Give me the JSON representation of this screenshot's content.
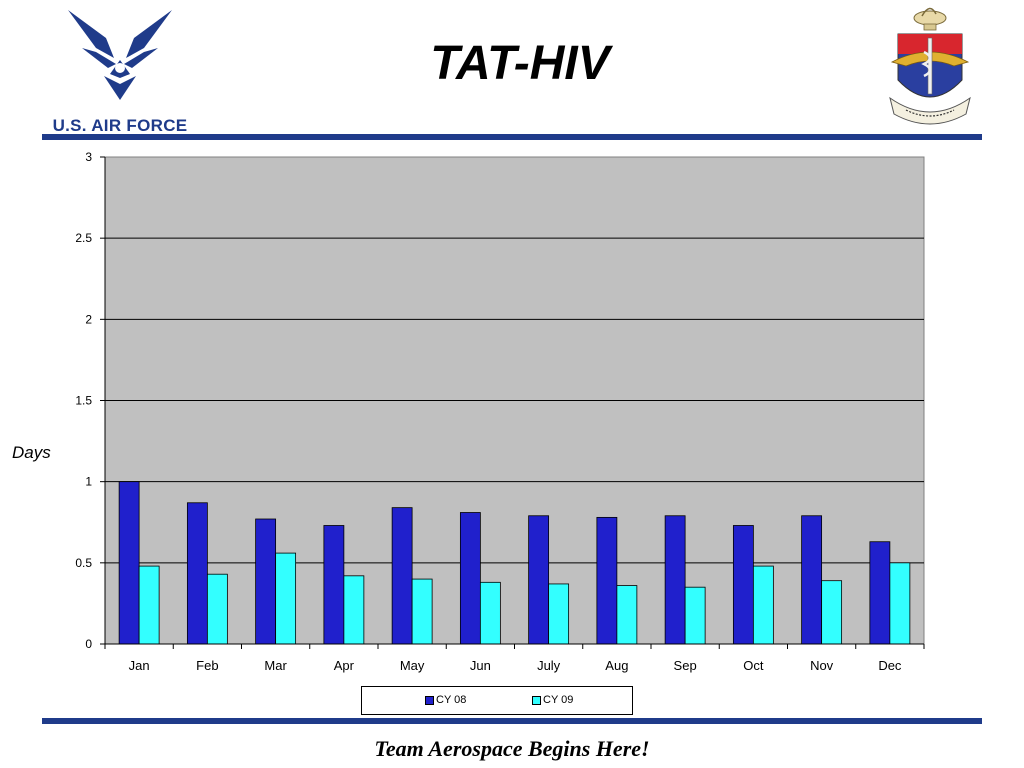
{
  "header": {
    "title": "TAT-HIV",
    "logo_text": "U.S. AIR FORCE"
  },
  "footer": {
    "slogan": "Team Aerospace Begins Here!"
  },
  "colors": {
    "brand_blue": "#1f3b8a",
    "plot_background": "#c0c0c0",
    "cy08": "#2020cc",
    "cy09": "#33ffff"
  },
  "icons": {
    "left_logo": "air-force-wings-icon",
    "right_logo": "medical-crest-icon"
  },
  "chart_data": {
    "type": "bar",
    "title": "",
    "xlabel": "",
    "ylabel": "Days",
    "ylim": [
      0,
      3
    ],
    "yticks": [
      "0",
      "0.5",
      "1",
      "1.5",
      "2",
      "2.5",
      "3"
    ],
    "grid": true,
    "legend_position": "bottom",
    "categories": [
      "Jan",
      "Feb",
      "Mar",
      "Apr",
      "May",
      "Jun",
      "July",
      "Aug",
      "Sep",
      "Oct",
      "Nov",
      "Dec"
    ],
    "series": [
      {
        "name": "CY 08",
        "color": "#2020cc",
        "values": [
          1.0,
          0.87,
          0.77,
          0.73,
          0.84,
          0.81,
          0.79,
          0.78,
          0.79,
          0.73,
          0.79,
          0.63
        ]
      },
      {
        "name": "CY 09",
        "color": "#33ffff",
        "values": [
          0.48,
          0.43,
          0.56,
          0.42,
          0.4,
          0.38,
          0.37,
          0.36,
          0.35,
          0.48,
          0.39,
          0.5
        ]
      }
    ]
  }
}
